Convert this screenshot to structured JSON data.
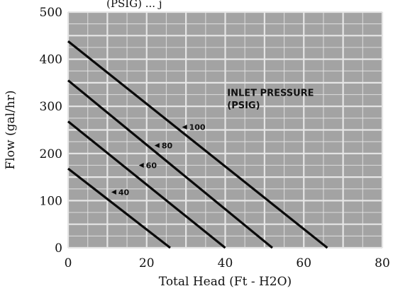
{
  "chart_data": {
    "type": "line",
    "title_fragment": "(PSIG) ... j",
    "xlabel": "Total Head (Ft - H2O)",
    "ylabel": "Flow (gal/hr)",
    "xlim": [
      0,
      80
    ],
    "ylim": [
      0,
      500
    ],
    "x_ticks": [
      0,
      20,
      40,
      60,
      80
    ],
    "y_ticks": [
      0,
      100,
      200,
      300,
      400,
      500
    ],
    "grid": true,
    "annotation_lines": [
      "INLET PRESSURE",
      "(PSIG)"
    ],
    "series": [
      {
        "name": "100",
        "x": [
          0,
          66
        ],
        "y": [
          438,
          0
        ],
        "label_at": [
          29,
          256
        ]
      },
      {
        "name": "80",
        "x": [
          0,
          52
        ],
        "y": [
          355,
          0
        ],
        "label_at": [
          22,
          217
        ]
      },
      {
        "name": "60",
        "x": [
          0,
          40
        ],
        "y": [
          268,
          0
        ],
        "label_at": [
          18,
          175
        ]
      },
      {
        "name": "40",
        "x": [
          0,
          26
        ],
        "y": [
          168,
          0
        ],
        "label_at": [
          11,
          118
        ]
      }
    ],
    "colors": {
      "plot_background": "#a3a3a3",
      "grid": "#e6e6e6",
      "series_line": "#0a0a0a"
    }
  }
}
